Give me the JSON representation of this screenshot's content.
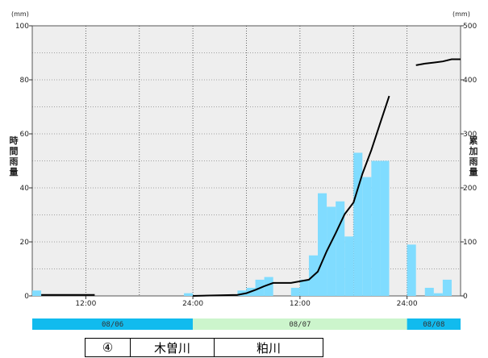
{
  "chart_data": {
    "type": "bar+line",
    "left_axis": {
      "unit": "(mm)",
      "label_chars": [
        "時",
        "間",
        "雨",
        "量"
      ],
      "ticks": [
        0,
        20,
        40,
        60,
        80,
        100
      ],
      "ylim": [
        0,
        100
      ]
    },
    "right_axis": {
      "unit": "(mm)",
      "label_chars": [
        "累",
        "加",
        "雨",
        "量"
      ],
      "ticks": [
        0,
        100,
        200,
        300,
        400,
        500
      ],
      "ylim": [
        0,
        500
      ]
    },
    "x_tick_labels": [
      "12:00",
      "24:00",
      "12:00",
      "24:00"
    ],
    "x_tick_hours": [
      6,
      18,
      30,
      42
    ],
    "hours_span": 48,
    "day_bands": [
      {
        "label": "08/06",
        "start_hour": -6,
        "end_hour": 18,
        "color": "#11bbee"
      },
      {
        "label": "08/07",
        "start_hour": 18,
        "end_hour": 42,
        "color": "#ccf5cc"
      },
      {
        "label": "08/08",
        "start_hour": 42,
        "end_hour": 48,
        "color": "#11bbee"
      }
    ],
    "hourly_rain": {
      "name": "時間雨量",
      "color": "#80dcff",
      "values": [
        2,
        0,
        0,
        0,
        0,
        0,
        0,
        0,
        0,
        0,
        0,
        0,
        0,
        0,
        0,
        0,
        0,
        1,
        0,
        0,
        0,
        0,
        0,
        2,
        3,
        6,
        7,
        0,
        0,
        3,
        6,
        15,
        38,
        33,
        35,
        22,
        53,
        44,
        50,
        50,
        0,
        0,
        19,
        0,
        3,
        1,
        6,
        0
      ]
    },
    "cumulative_rain": {
      "name": "累加雨量",
      "color": "#000000",
      "segments": [
        [
          [
            1,
            2
          ],
          [
            7,
            2
          ]
        ],
        [
          [
            18,
            0
          ],
          [
            23,
            2
          ],
          [
            24,
            5
          ],
          [
            25,
            11
          ],
          [
            26,
            18
          ],
          [
            27,
            24
          ],
          [
            28,
            24
          ],
          [
            29,
            24
          ],
          [
            30,
            27
          ],
          [
            31,
            30
          ],
          [
            32,
            45
          ],
          [
            33,
            83
          ],
          [
            34,
            116
          ],
          [
            35,
            151
          ],
          [
            36,
            173
          ],
          [
            37,
            226
          ],
          [
            38,
            270
          ],
          [
            39,
            320
          ],
          [
            40,
            370
          ]
        ],
        [
          [
            43,
            427
          ],
          [
            44,
            430
          ],
          [
            45,
            432
          ],
          [
            46,
            434
          ],
          [
            47,
            438
          ],
          [
            48,
            438
          ]
        ]
      ]
    }
  },
  "station": {
    "number": "④",
    "river": "木曽川",
    "name": "粕川"
  }
}
